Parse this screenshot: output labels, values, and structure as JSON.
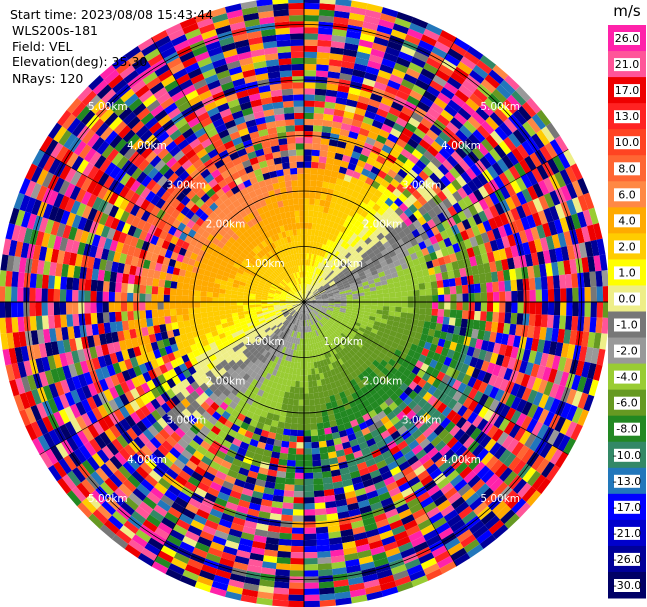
{
  "header": {
    "start_time": "Start time: 2023/08/08 15:43:44",
    "instrument": "WLS200s-181",
    "field": "Field: VEL",
    "elevation": "Elevation(deg): 35.30",
    "nrays": "NRays: 120"
  },
  "chart_data": {
    "type": "heatmap",
    "projection": "polar (PPI)",
    "field": "VEL",
    "n_rays": 120,
    "range_rings_km": [
      1.0,
      2.0,
      3.0,
      4.0,
      5.0
    ],
    "range_ring_labels": [
      "1.00km",
      "2.00km",
      "3.00km",
      "4.00km",
      "5.00km"
    ],
    "max_range_km": 5.5,
    "colorbar": {
      "unit": "m/s",
      "tick_labels": [
        "26.0",
        "21.0",
        "17.0",
        "13.0",
        "10.0",
        "8.0",
        "6.0",
        "4.0",
        "2.0",
        "1.0",
        "0.0",
        "-1.0",
        "-2.0",
        "-4.0",
        "-6.0",
        "-8.0",
        "-10.0",
        "-13.0",
        "-17.0",
        "-21.0",
        "-26.0",
        "-30.0"
      ],
      "bounds": [
        30,
        26,
        21,
        17,
        13,
        10,
        8,
        6,
        4,
        2,
        1,
        0,
        -1,
        -2,
        -4,
        -6,
        -8,
        -10,
        -13,
        -17,
        -21,
        -26,
        -30
      ],
      "colors": [
        "#ff22aa",
        "#ff5599",
        "#ee0000",
        "#ff2222",
        "#ff4422",
        "#ff6633",
        "#ff8844",
        "#ffaa00",
        "#ffcc00",
        "#ffff00",
        "#eeee88",
        "#777777",
        "#999999",
        "#99cc33",
        "#669922",
        "#228822",
        "#338866",
        "#2277bb",
        "#0000ff",
        "#0000cc",
        "#000099",
        "#000066"
      ]
    }
  }
}
